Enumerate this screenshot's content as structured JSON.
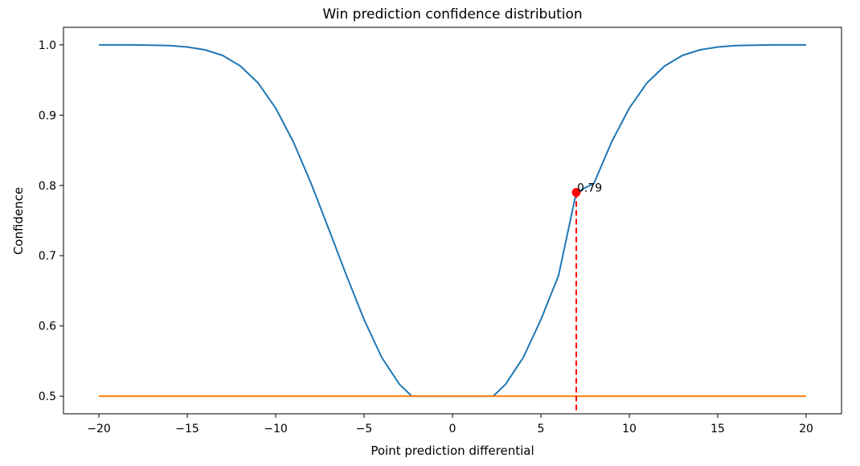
{
  "chart_data": {
    "type": "line",
    "title": "Win prediction confidence distribution",
    "xlabel": "Point prediction differential",
    "ylabel": "Confidence",
    "xlim": [
      -22,
      22
    ],
    "ylim": [
      0.475,
      1.025
    ],
    "xticks": [
      -20,
      -15,
      -10,
      -5,
      0,
      5,
      10,
      15,
      20
    ],
    "xtick_labels": [
      "−20",
      "−15",
      "−10",
      "−5",
      "0",
      "5",
      "10",
      "15",
      "20"
    ],
    "yticks": [
      0.5,
      0.6,
      0.7,
      0.8,
      0.9,
      1.0
    ],
    "ytick_labels": [
      "0.5",
      "0.6",
      "0.7",
      "0.8",
      "0.9",
      "1.0"
    ],
    "grid": false,
    "series": [
      {
        "color": "#1f77b4",
        "x": [
          -20,
          -18,
          -16,
          -15,
          -14,
          -13,
          -12,
          -11,
          -10,
          -9,
          -8,
          -7,
          -6,
          -5,
          -4,
          -3,
          -2.3,
          -1,
          0,
          1,
          2.3,
          3,
          4,
          5,
          6,
          7,
          8,
          9,
          10,
          11,
          12,
          13,
          14,
          15,
          16,
          18,
          20
        ],
        "y": [
          1.0,
          1.0,
          0.999,
          0.997,
          0.993,
          0.985,
          0.97,
          0.946,
          0.91,
          0.862,
          0.803,
          0.738,
          0.672,
          0.609,
          0.555,
          0.517,
          0.5,
          0.5,
          0.5,
          0.5,
          0.5,
          0.517,
          0.555,
          0.609,
          0.672,
          0.79,
          0.803,
          0.862,
          0.91,
          0.946,
          0.97,
          0.985,
          0.993,
          0.997,
          0.999,
          1.0,
          1.0
        ]
      },
      {
        "color": "#ff7f0e",
        "x": [
          -20,
          20
        ],
        "y": [
          0.5,
          0.5
        ]
      }
    ],
    "marker": {
      "x": 7,
      "y": 0.79,
      "label": "0.79",
      "color": "#ff0000"
    }
  }
}
